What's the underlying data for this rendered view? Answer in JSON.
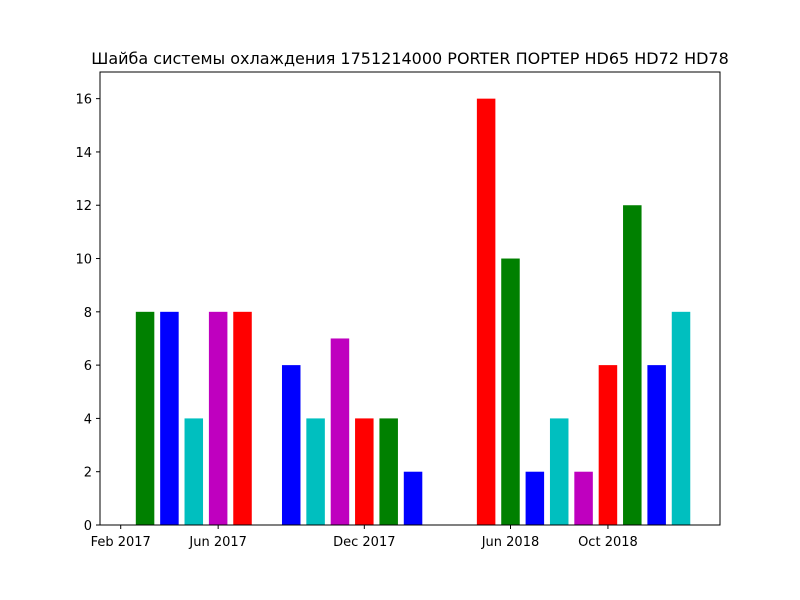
{
  "chart_data": {
    "type": "bar",
    "title": "Шайба системы охлаждения 1751214000 PORTER ПОРТЕР HD65 HD72 HD78",
    "xlabel": "",
    "ylabel": "",
    "ylim": [
      0,
      17
    ],
    "grid": false,
    "x_tick_labels": [
      "Feb 2017",
      "Jun 2017",
      "Dec 2017",
      "Jun 2018",
      "Oct 2018"
    ],
    "y_ticks": [
      0,
      2,
      4,
      6,
      8,
      10,
      12,
      14,
      16
    ],
    "bars": [
      {
        "month": "2017-03",
        "value": 8,
        "color": "#008000"
      },
      {
        "month": "2017-04",
        "value": 8,
        "color": "#0000ff"
      },
      {
        "month": "2017-05",
        "value": 4,
        "color": "#00bfbf"
      },
      {
        "month": "2017-06",
        "value": 8,
        "color": "#bf00bf"
      },
      {
        "month": "2017-07",
        "value": 8,
        "color": "#ff0000"
      },
      {
        "month": "2017-09",
        "value": 6,
        "color": "#0000ff"
      },
      {
        "month": "2017-10",
        "value": 4,
        "color": "#00bfbf"
      },
      {
        "month": "2017-11",
        "value": 7,
        "color": "#bf00bf"
      },
      {
        "month": "2017-12",
        "value": 4,
        "color": "#ff0000"
      },
      {
        "month": "2018-01",
        "value": 4,
        "color": "#008000"
      },
      {
        "month": "2018-02",
        "value": 2,
        "color": "#0000ff"
      },
      {
        "month": "2018-05",
        "value": 16,
        "color": "#ff0000"
      },
      {
        "month": "2018-06",
        "value": 10,
        "color": "#008000"
      },
      {
        "month": "2018-07",
        "value": 2,
        "color": "#0000ff"
      },
      {
        "month": "2018-08",
        "value": 4,
        "color": "#00bfbf"
      },
      {
        "month": "2018-09",
        "value": 2,
        "color": "#bf00bf"
      },
      {
        "month": "2018-10",
        "value": 6,
        "color": "#ff0000"
      },
      {
        "month": "2018-11",
        "value": 12,
        "color": "#008000"
      },
      {
        "month": "2018-12",
        "value": 6,
        "color": "#0000ff"
      },
      {
        "month": "2019-01",
        "value": 8,
        "color": "#00bfbf"
      }
    ]
  }
}
